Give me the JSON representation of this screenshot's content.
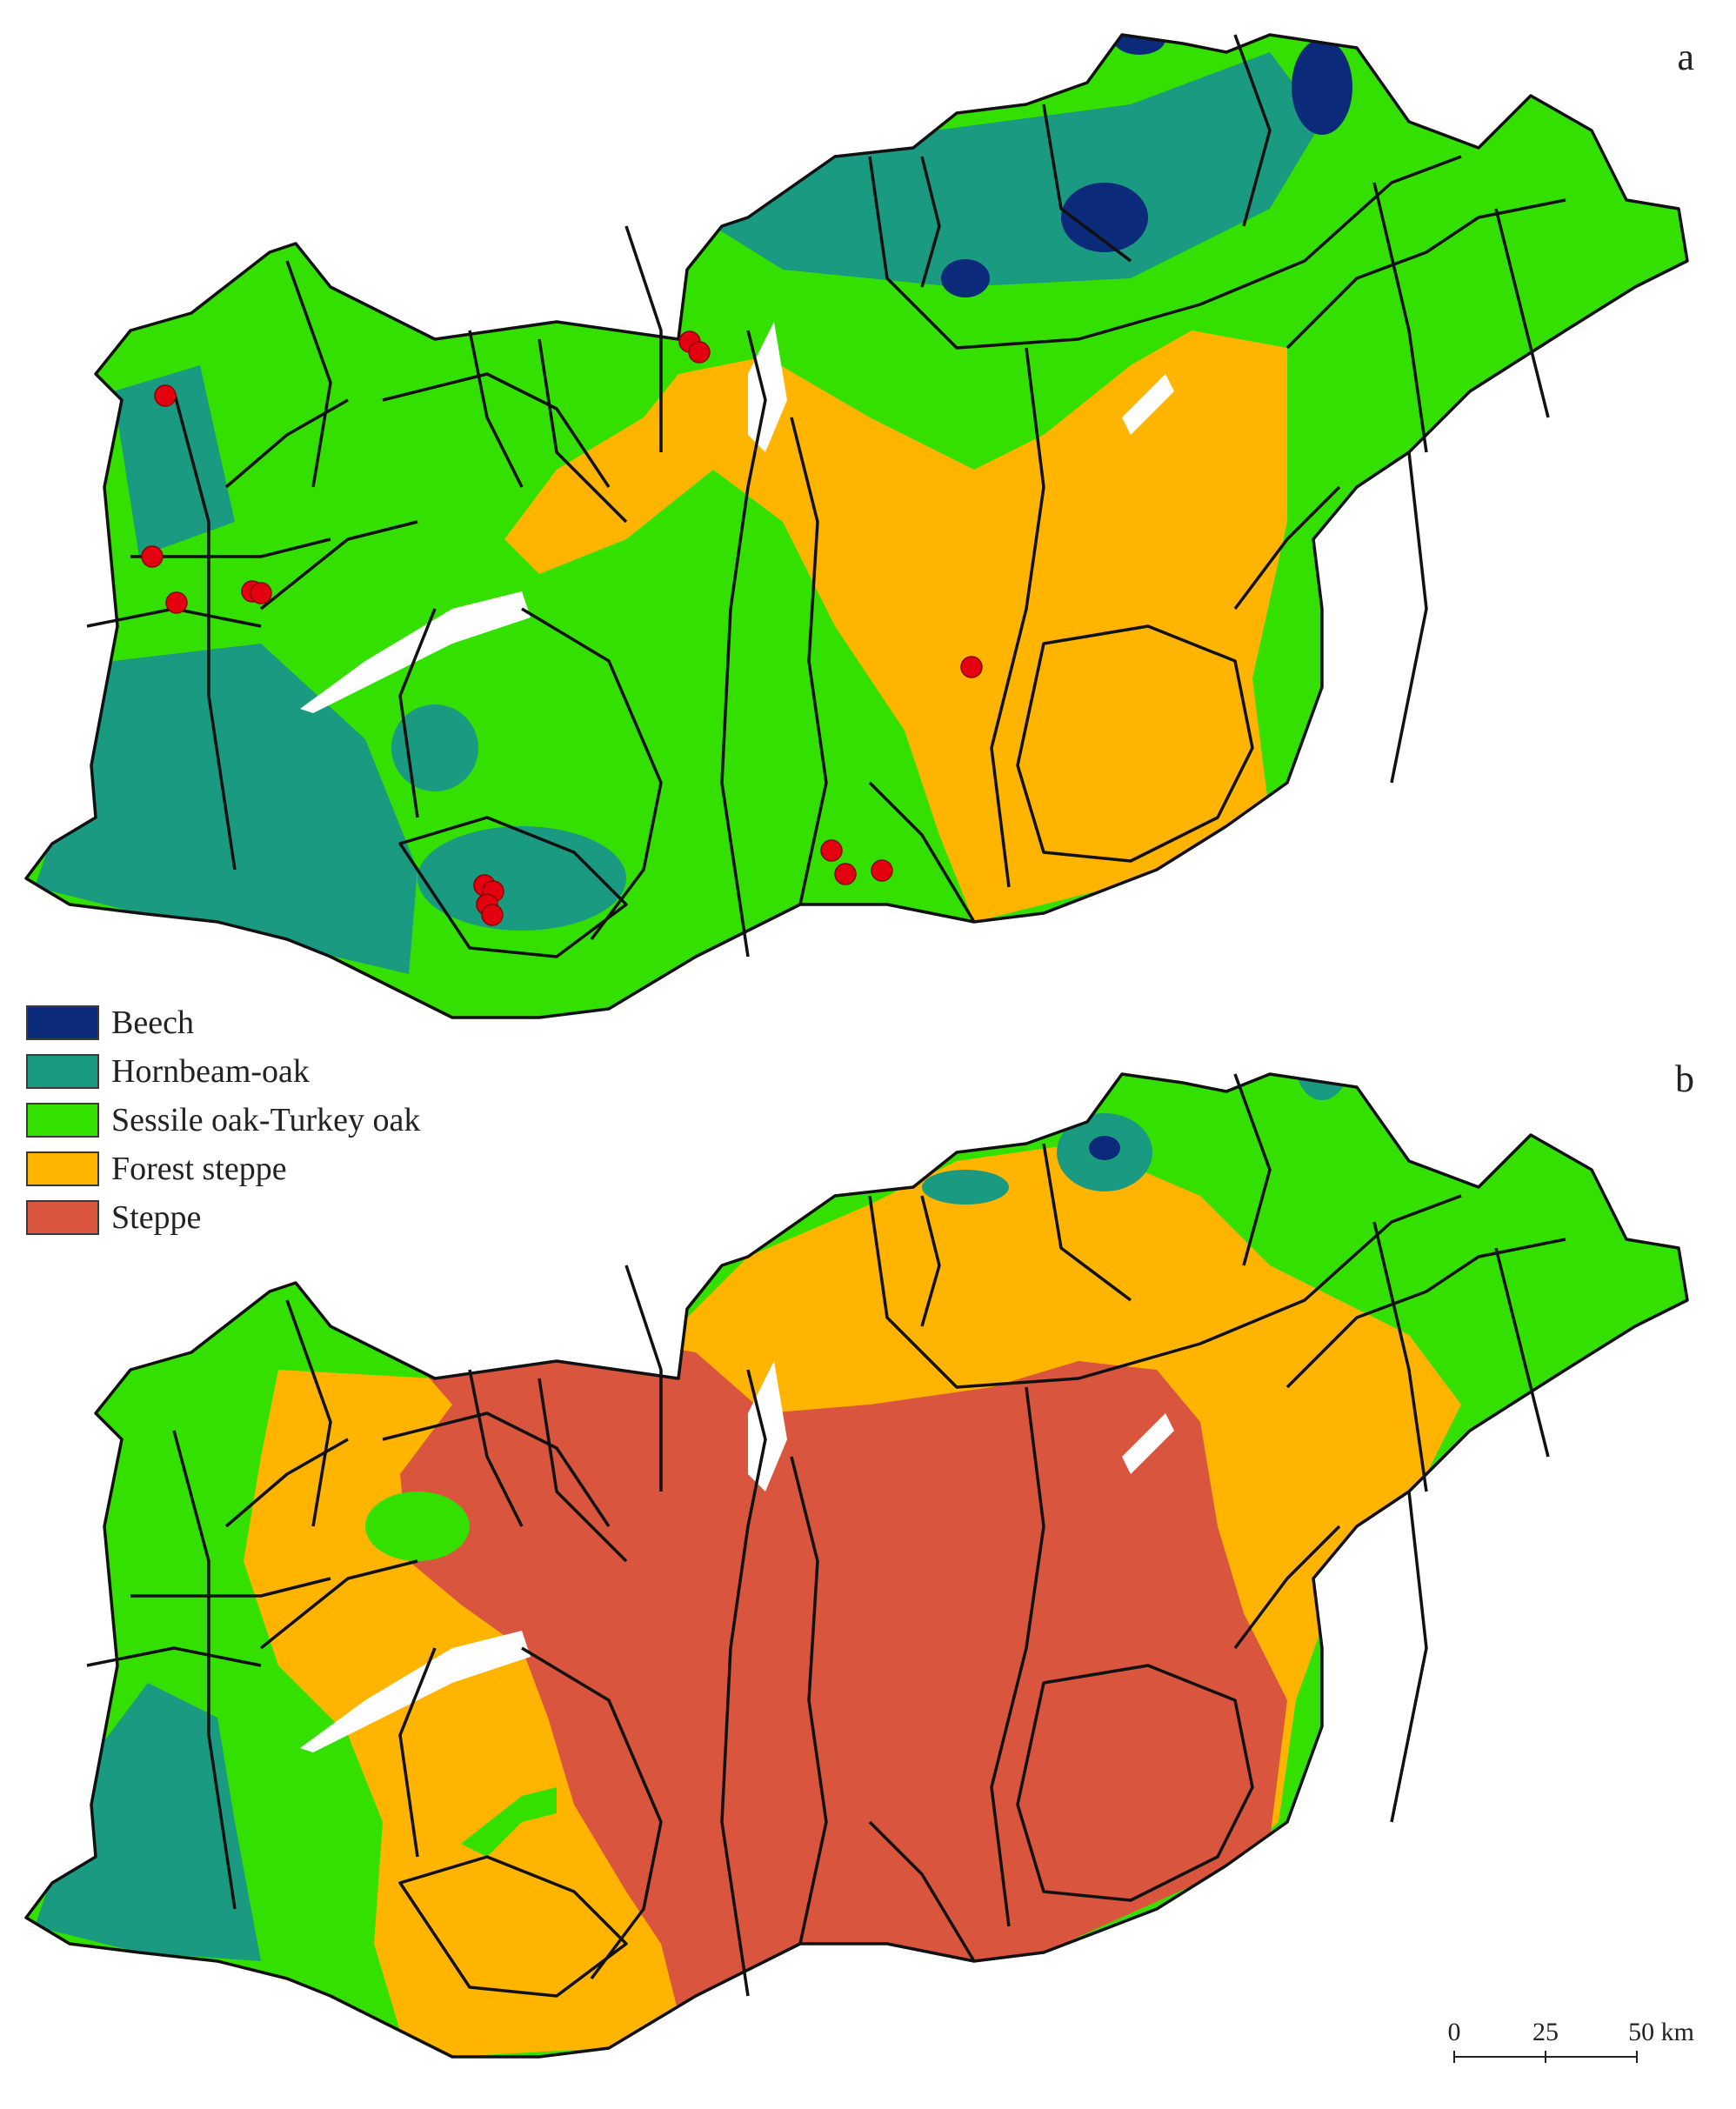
{
  "panels": [
    {
      "letter": "a"
    },
    {
      "letter": "b"
    }
  ],
  "legend": [
    {
      "label": "Beech",
      "color": "#0b2a7a"
    },
    {
      "label": "Hornbeam-oak",
      "color": "#1a9a80"
    },
    {
      "label": "Sessile oak-Turkey oak",
      "color": "#33e000"
    },
    {
      "label": "Forest steppe",
      "color": "#ffb400"
    },
    {
      "label": "Steppe",
      "color": "#d9553d"
    }
  ],
  "scale": {
    "labels": [
      "0",
      "25",
      "50 km"
    ]
  },
  "colors": {
    "boundary": "#111111",
    "site_marker": "#e3000f",
    "water": "#ffffff"
  }
}
